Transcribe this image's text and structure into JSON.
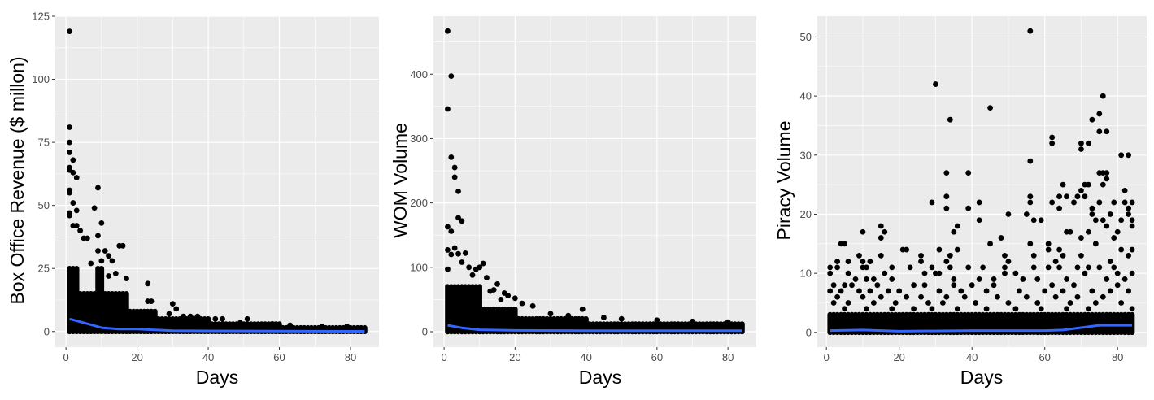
{
  "chart_data": [
    {
      "type": "scatter",
      "xlabel": "Days",
      "ylabel": "Box Office Revenue ($ millon)",
      "xlim": [
        -3,
        88
      ],
      "ylim": [
        -6.2,
        125
      ],
      "xticks": [
        0,
        20,
        40,
        60,
        80
      ],
      "yticks": [
        0,
        25,
        50,
        75,
        100,
        125
      ],
      "grid": true,
      "point_color": "#000000",
      "smooth_color": "#3366FF",
      "dense_max_by_day_ranges": [
        [
          1,
          3,
          25
        ],
        [
          4,
          8,
          15
        ],
        [
          9,
          10,
          25
        ],
        [
          11,
          17,
          15
        ],
        [
          18,
          25,
          8
        ],
        [
          26,
          40,
          5
        ],
        [
          41,
          60,
          3
        ],
        [
          61,
          84,
          1.5
        ]
      ],
      "points": [
        [
          1,
          119
        ],
        [
          1,
          81
        ],
        [
          1,
          75
        ],
        [
          1,
          71
        ],
        [
          1,
          65
        ],
        [
          1,
          64
        ],
        [
          1,
          56
        ],
        [
          1,
          55
        ],
        [
          1,
          47
        ],
        [
          1,
          46
        ],
        [
          2,
          68
        ],
        [
          2,
          63
        ],
        [
          2,
          51
        ],
        [
          3,
          61
        ],
        [
          3,
          48
        ],
        [
          2,
          42
        ],
        [
          3,
          42
        ],
        [
          4,
          40
        ],
        [
          6,
          37
        ],
        [
          5,
          37
        ],
        [
          9,
          57
        ],
        [
          8,
          49
        ],
        [
          10,
          43
        ],
        [
          9,
          38
        ],
        [
          9,
          32
        ],
        [
          11,
          32
        ],
        [
          12,
          30
        ],
        [
          13,
          28
        ],
        [
          7,
          27
        ],
        [
          10,
          28
        ],
        [
          15,
          34
        ],
        [
          16,
          34
        ],
        [
          17,
          21
        ],
        [
          14,
          23
        ],
        [
          12,
          22
        ],
        [
          23,
          19
        ],
        [
          24,
          12
        ],
        [
          23,
          12
        ],
        [
          30,
          11
        ],
        [
          31,
          9
        ],
        [
          29,
          7
        ],
        [
          33,
          6
        ],
        [
          37,
          6
        ],
        [
          35,
          6
        ],
        [
          42,
          5
        ],
        [
          44,
          5
        ],
        [
          51,
          5
        ],
        [
          49,
          3.5
        ],
        [
          58,
          3
        ],
        [
          63,
          2.5
        ],
        [
          79,
          2
        ],
        [
          72,
          2
        ]
      ],
      "smooth": [
        [
          1,
          5
        ],
        [
          5,
          3.5
        ],
        [
          10,
          1.5
        ],
        [
          15,
          1
        ],
        [
          20,
          1
        ],
        [
          30,
          0.3
        ],
        [
          50,
          0.2
        ],
        [
          84,
          0.1
        ]
      ]
    },
    {
      "type": "scatter",
      "xlabel": "Days",
      "ylabel": "WOM Volume",
      "xlim": [
        -3,
        88
      ],
      "ylim": [
        -24,
        490
      ],
      "xticks": [
        0,
        20,
        40,
        60,
        80
      ],
      "yticks": [
        0,
        100,
        200,
        300,
        400
      ],
      "grid": true,
      "point_color": "#000000",
      "smooth_color": "#3366FF",
      "dense_max_by_day_ranges": [
        [
          1,
          10,
          70
        ],
        [
          11,
          20,
          35
        ],
        [
          21,
          40,
          20
        ],
        [
          41,
          84,
          12
        ]
      ],
      "points": [
        [
          1,
          467
        ],
        [
          2,
          397
        ],
        [
          1,
          346
        ],
        [
          2,
          271
        ],
        [
          3,
          255
        ],
        [
          3,
          240
        ],
        [
          4,
          218
        ],
        [
          4,
          177
        ],
        [
          5,
          172
        ],
        [
          1,
          163
        ],
        [
          2,
          156
        ],
        [
          3,
          130
        ],
        [
          1,
          127
        ],
        [
          2,
          120
        ],
        [
          4,
          121
        ],
        [
          6,
          122
        ],
        [
          5,
          108
        ],
        [
          1,
          97
        ],
        [
          7,
          100
        ],
        [
          9,
          97
        ],
        [
          11,
          106
        ],
        [
          10,
          100
        ],
        [
          8,
          88
        ],
        [
          12,
          84
        ],
        [
          15,
          74
        ],
        [
          14,
          65
        ],
        [
          13,
          63
        ],
        [
          17,
          60
        ],
        [
          18,
          56
        ],
        [
          20,
          52
        ],
        [
          16,
          50
        ],
        [
          22,
          44
        ],
        [
          25,
          40
        ],
        [
          30,
          28
        ],
        [
          39,
          35
        ],
        [
          35,
          25
        ],
        [
          45,
          22
        ],
        [
          50,
          20
        ],
        [
          60,
          18
        ],
        [
          70,
          16
        ],
        [
          80,
          15
        ]
      ],
      "smooth": [
        [
          1,
          10
        ],
        [
          5,
          6
        ],
        [
          10,
          3
        ],
        [
          20,
          2
        ],
        [
          40,
          1.5
        ],
        [
          84,
          1.5
        ]
      ]
    },
    {
      "type": "scatter",
      "xlabel": "Days",
      "ylabel": "Piracy Volume",
      "xlim": [
        -2.5,
        88
      ],
      "ylim": [
        -2.5,
        53.5
      ],
      "xticks": [
        0,
        20,
        40,
        60,
        80
      ],
      "yticks": [
        0,
        10,
        20,
        30,
        40,
        50
      ],
      "grid": true,
      "point_color": "#000000",
      "smooth_color": "#3366FF",
      "dense_max_by_day_ranges": [
        [
          1,
          84,
          3
        ]
      ],
      "points": [
        [
          56,
          51
        ],
        [
          30,
          42
        ],
        [
          76,
          40
        ],
        [
          45,
          38
        ],
        [
          75,
          37
        ],
        [
          34,
          36
        ],
        [
          73,
          36
        ],
        [
          75,
          34
        ],
        [
          77,
          34
        ],
        [
          62,
          33
        ],
        [
          62,
          32
        ],
        [
          70,
          32
        ],
        [
          72,
          32
        ],
        [
          70,
          31
        ],
        [
          81,
          30
        ],
        [
          83,
          30
        ],
        [
          56,
          29
        ],
        [
          33,
          27
        ],
        [
          39,
          27
        ],
        [
          75,
          27
        ],
        [
          76,
          27
        ],
        [
          77,
          27
        ],
        [
          77,
          26
        ],
        [
          76,
          25
        ],
        [
          65,
          25
        ],
        [
          71,
          25
        ],
        [
          72,
          25
        ],
        [
          82,
          24
        ],
        [
          70,
          24
        ],
        [
          33,
          23
        ],
        [
          56,
          23
        ],
        [
          64,
          23
        ],
        [
          66,
          23
        ],
        [
          71,
          23
        ],
        [
          69,
          23
        ],
        [
          29,
          22
        ],
        [
          42,
          22
        ],
        [
          56,
          22
        ],
        [
          62,
          22
        ],
        [
          68,
          22
        ],
        [
          75,
          22
        ],
        [
          79,
          22
        ],
        [
          82,
          22
        ],
        [
          84,
          22
        ],
        [
          33,
          21
        ],
        [
          39,
          21
        ],
        [
          64,
          21
        ],
        [
          73,
          21
        ],
        [
          83,
          21
        ],
        [
          50,
          20
        ],
        [
          55,
          20
        ],
        [
          73,
          20
        ],
        [
          78,
          20
        ],
        [
          83,
          20
        ],
        [
          42,
          19
        ],
        [
          57,
          19
        ],
        [
          59,
          19
        ],
        [
          74,
          19
        ],
        [
          76,
          19
        ],
        [
          81,
          19
        ],
        [
          84,
          19
        ],
        [
          15,
          18
        ],
        [
          36,
          18
        ],
        [
          77,
          18
        ],
        [
          84,
          18
        ],
        [
          10,
          17
        ],
        [
          16,
          17
        ],
        [
          35,
          17
        ],
        [
          66,
          17
        ],
        [
          67,
          17
        ],
        [
          72,
          17
        ],
        [
          80,
          17
        ],
        [
          15,
          16
        ],
        [
          48,
          16
        ],
        [
          70,
          16
        ],
        [
          79,
          16
        ],
        [
          4,
          15
        ],
        [
          5,
          15
        ],
        [
          45,
          15
        ],
        [
          56,
          15
        ],
        [
          61,
          15
        ],
        [
          74,
          15
        ],
        [
          31,
          14
        ],
        [
          21,
          14
        ],
        [
          22,
          14
        ],
        [
          36,
          14
        ],
        [
          61,
          14
        ],
        [
          64,
          14
        ],
        [
          81,
          14
        ],
        [
          84,
          14
        ],
        [
          9,
          13
        ],
        [
          15,
          13
        ],
        [
          26,
          13
        ],
        [
          34,
          13
        ],
        [
          49,
          13
        ],
        [
          57,
          13
        ],
        [
          65,
          13
        ],
        [
          70,
          13
        ],
        [
          83,
          13
        ],
        [
          3,
          12
        ],
        [
          6,
          12
        ],
        [
          10,
          12
        ],
        [
          12,
          12
        ],
        [
          26,
          12
        ],
        [
          33,
          12
        ],
        [
          50,
          12
        ],
        [
          63,
          12
        ],
        [
          78,
          12
        ],
        [
          1,
          11
        ],
        [
          3,
          11
        ],
        [
          10,
          11
        ],
        [
          11,
          11
        ],
        [
          18,
          11
        ],
        [
          23,
          11
        ],
        [
          29,
          11
        ],
        [
          34,
          11
        ],
        [
          39,
          11
        ],
        [
          43,
          11
        ],
        [
          49,
          11
        ],
        [
          57,
          11
        ],
        [
          61,
          11
        ],
        [
          64,
          11
        ],
        [
          69,
          11
        ],
        [
          72,
          11
        ],
        [
          75,
          11
        ],
        [
          79,
          11
        ],
        [
          1,
          10
        ],
        [
          6,
          10
        ],
        [
          16,
          10
        ],
        [
          27,
          10
        ],
        [
          30,
          10
        ],
        [
          31,
          10
        ],
        [
          49,
          10
        ],
        [
          52,
          10
        ],
        [
          71,
          10
        ],
        [
          80,
          10
        ],
        [
          84,
          10
        ],
        [
          8,
          9
        ],
        [
          11,
          9
        ],
        [
          13,
          9
        ],
        [
          18,
          9
        ],
        [
          35,
          9
        ],
        [
          42,
          9
        ],
        [
          46,
          9
        ],
        [
          54,
          9
        ],
        [
          58,
          9
        ],
        [
          66,
          9
        ],
        [
          77,
          9
        ],
        [
          82,
          9
        ],
        [
          2,
          8
        ],
        [
          5,
          8
        ],
        [
          7,
          8
        ],
        [
          14,
          8
        ],
        [
          24,
          8
        ],
        [
          27,
          8
        ],
        [
          35,
          8
        ],
        [
          40,
          8
        ],
        [
          46,
          8
        ],
        [
          62,
          8
        ],
        [
          68,
          8
        ],
        [
          80,
          8
        ],
        [
          1,
          7
        ],
        [
          4,
          7
        ],
        [
          9,
          7
        ],
        [
          12,
          7
        ],
        [
          17,
          7
        ],
        [
          20,
          7
        ],
        [
          31,
          7
        ],
        [
          37,
          7
        ],
        [
          44,
          7
        ],
        [
          53,
          7
        ],
        [
          60,
          7
        ],
        [
          65,
          7
        ],
        [
          73,
          7
        ],
        [
          78,
          7
        ],
        [
          83,
          7
        ],
        [
          3,
          6
        ],
        [
          10,
          6
        ],
        [
          15,
          6
        ],
        [
          22,
          6
        ],
        [
          26,
          6
        ],
        [
          33,
          6
        ],
        [
          38,
          6
        ],
        [
          47,
          6
        ],
        [
          55,
          6
        ],
        [
          63,
          6
        ],
        [
          69,
          6
        ],
        [
          76,
          6
        ],
        [
          2,
          5
        ],
        [
          6,
          5
        ],
        [
          13,
          5
        ],
        [
          19,
          5
        ],
        [
          28,
          5
        ],
        [
          32,
          5
        ],
        [
          41,
          5
        ],
        [
          50,
          5
        ],
        [
          58,
          5
        ],
        [
          67,
          5
        ],
        [
          74,
          5
        ],
        [
          81,
          5
        ],
        [
          5,
          4
        ],
        [
          11,
          4
        ],
        [
          18,
          4
        ],
        [
          24,
          4
        ],
        [
          29,
          4
        ],
        [
          36,
          4
        ],
        [
          44,
          4
        ],
        [
          52,
          4
        ],
        [
          59,
          4
        ],
        [
          66,
          4
        ],
        [
          72,
          4
        ],
        [
          84,
          4
        ]
      ],
      "smooth": [
        [
          1,
          0.3
        ],
        [
          10,
          0.4
        ],
        [
          20,
          0.2
        ],
        [
          40,
          0.3
        ],
        [
          60,
          0.3
        ],
        [
          65,
          0.4
        ],
        [
          70,
          0.8
        ],
        [
          75,
          1.2
        ],
        [
          84,
          1.2
        ]
      ]
    }
  ]
}
